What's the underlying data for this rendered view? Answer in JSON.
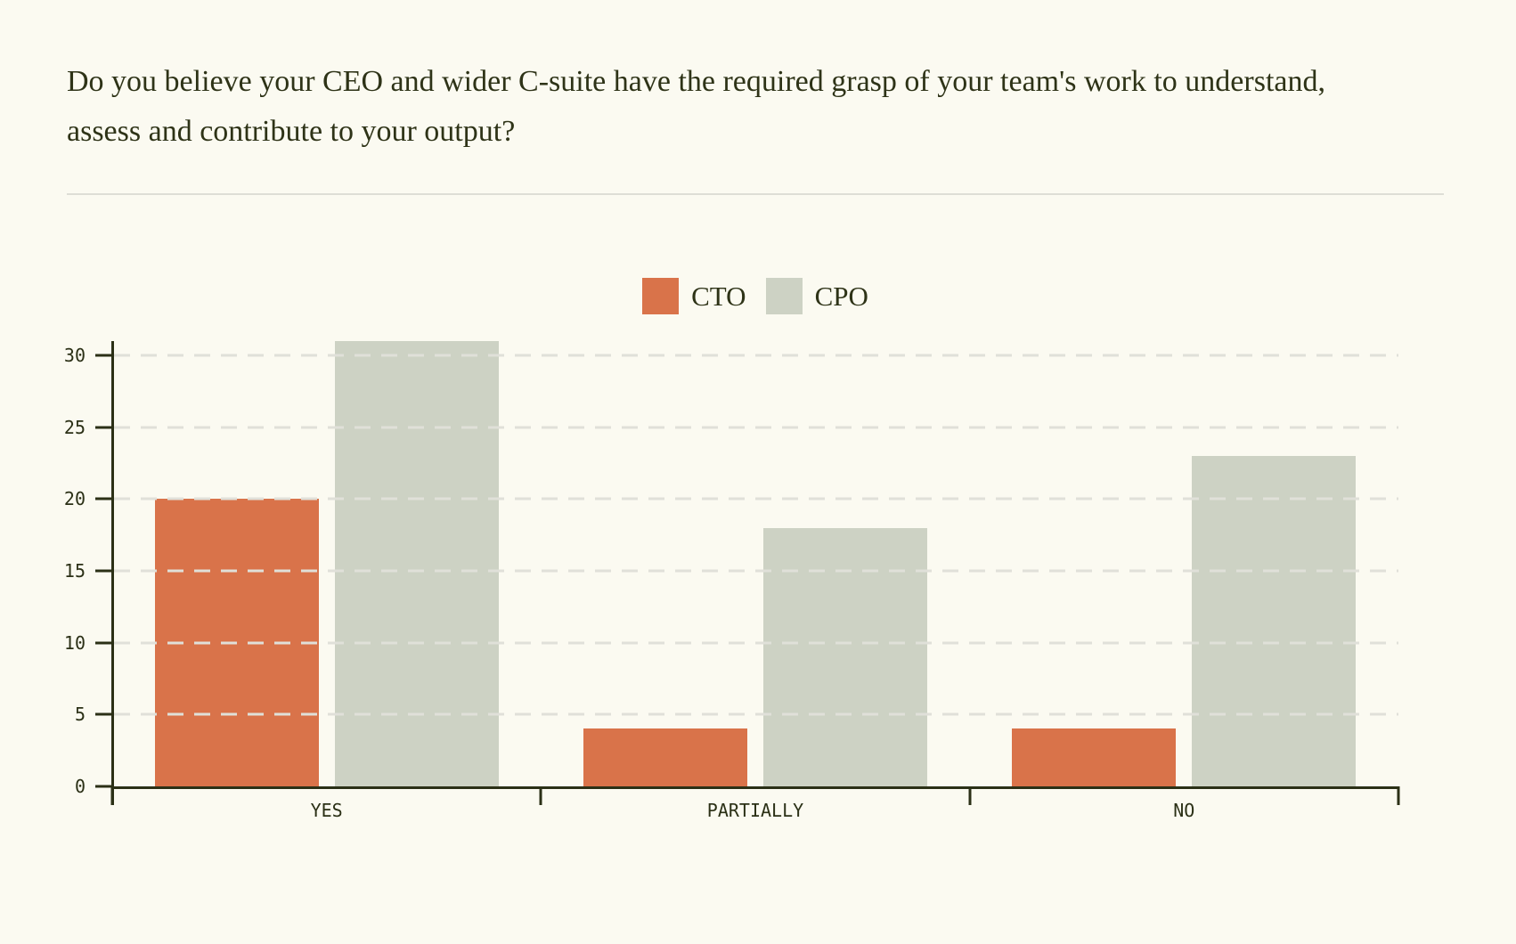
{
  "page": {
    "title": "Do you believe your CEO and wider C-suite have the required grasp of your team's work to understand, assess and contribute to your output?",
    "background_color": "#FBFAF1",
    "text_color": "#2E3317",
    "divider_color": "#DEDED6"
  },
  "chart_data": {
    "type": "bar",
    "categories": [
      "YES",
      "PARTIALLY",
      "NO"
    ],
    "series": [
      {
        "name": "CTO",
        "color": "#D9734A",
        "values": [
          20,
          4,
          4
        ]
      },
      {
        "name": "CPO",
        "color": "#CDD2C4",
        "values": [
          31,
          18,
          23
        ]
      }
    ],
    "title": "",
    "xlabel": "",
    "ylabel": "",
    "ylim": [
      0,
      31
    ],
    "yticks": [
      0,
      5,
      10,
      15,
      20,
      25,
      30
    ],
    "grid": "horizontal dashed",
    "legend_position": "top-center",
    "axis_color": "#2B3016",
    "gridline_color": "#E0E0D9",
    "label_color": "#2B3016"
  }
}
